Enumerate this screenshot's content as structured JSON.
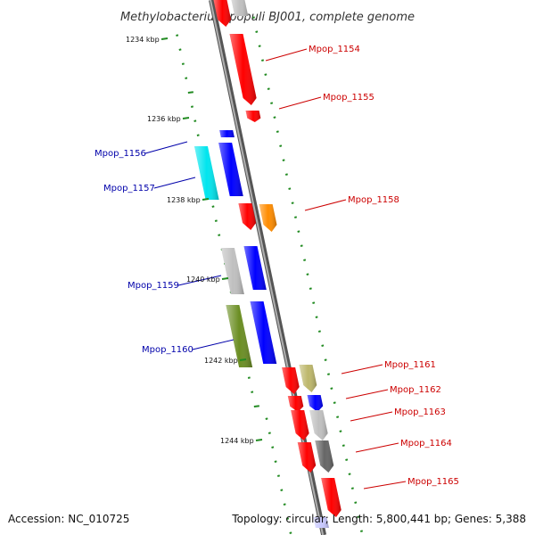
{
  "title": "Methylobacterium populi BJ001, complete genome",
  "footer": {
    "accession": "Accession: NC_010725",
    "summary": "Topology: circular; Length: 5,800,441 bp; Genes: 5,388"
  },
  "scale_labels": [
    "1234 kbp",
    "1236 kbp",
    "1238 kbp",
    "1240 kbp",
    "1242 kbp",
    "1244 kbp"
  ],
  "colors": {
    "axis": "#888888",
    "forward_label": "#cc0000",
    "reverse_label": "#0000aa",
    "tick": "#228b22"
  },
  "genes": [
    {
      "label": "Mpop_1154",
      "strand": "forward",
      "color": "#ff0000"
    },
    {
      "label": "Mpop_1155",
      "strand": "forward",
      "color": "#ff0000"
    },
    {
      "label": "Mpop_1156",
      "strand": "reverse",
      "color": "#0000ff"
    },
    {
      "label": "Mpop_1157",
      "strand": "reverse",
      "color": "#00e5ee"
    },
    {
      "label": "Mpop_1158",
      "strand": "forward",
      "color": "#ff8c00"
    },
    {
      "label": "Mpop_1159",
      "strand": "reverse",
      "color": "#c0c0c0"
    },
    {
      "label": "Mpop_1160",
      "strand": "reverse",
      "color": "#6b8e23"
    },
    {
      "label": "Mpop_1161",
      "strand": "forward",
      "color": "#bdb76b"
    },
    {
      "label": "Mpop_1162",
      "strand": "forward",
      "color": "#0000ff"
    },
    {
      "label": "Mpop_1163",
      "strand": "forward",
      "color": "#c0c0c0"
    },
    {
      "label": "Mpop_1164",
      "strand": "forward",
      "color": "#666666"
    },
    {
      "label": "Mpop_1165",
      "strand": "forward",
      "color": "#ff0000"
    }
  ]
}
